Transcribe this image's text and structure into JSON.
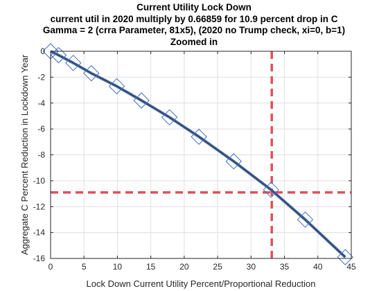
{
  "chart_data": {
    "type": "line",
    "title_lines": [
      "Current Utility Lock Down",
      "current util in 2020 multiply by 0.66859 for 10.9 percent drop in C",
      "Gamma = 2 (crra Parameter, 81x5), (2020 no Trump check, xi=0, b=1)",
      "Zoomed in"
    ],
    "xlabel": "Lock Down Current Utility Percent/Proportional Reduction",
    "ylabel": "Aggregate C Percent Reduction in Lockdown Year",
    "xlim": [
      0,
      45
    ],
    "ylim": [
      -16,
      0
    ],
    "xticks": [
      0,
      5,
      10,
      15,
      20,
      25,
      30,
      35,
      40,
      45
    ],
    "yticks": [
      0,
      -2,
      -4,
      -6,
      -8,
      -10,
      -12,
      -14,
      -16
    ],
    "grid": true,
    "series": [
      {
        "style": "thick-blue-line",
        "color": "#3d6fc4",
        "x": [
          0,
          1.2,
          3.4,
          6.1,
          9.9,
          13.6,
          17.8,
          22.2,
          27.4,
          33.0,
          38.1,
          44.1
        ],
        "y": [
          0,
          -0.3,
          -0.9,
          -1.7,
          -2.7,
          -3.8,
          -5.1,
          -6.6,
          -8.5,
          -10.7,
          -13.0,
          -15.9
        ]
      },
      {
        "style": "thin-gray-line",
        "color": "#444444",
        "x": [
          0,
          1.2,
          3.4,
          6.1,
          9.9,
          13.6,
          17.8,
          22.2,
          27.4,
          33.0,
          38.1,
          44.1
        ],
        "y": [
          0,
          -0.3,
          -0.9,
          -1.7,
          -2.7,
          -3.8,
          -5.1,
          -6.6,
          -8.5,
          -10.7,
          -13.0,
          -15.9
        ]
      },
      {
        "style": "diamond-markers",
        "color": "#3d6fc4",
        "x": [
          0,
          1.2,
          3.4,
          6.1,
          9.9,
          13.6,
          17.8,
          22.2,
          27.4,
          33.0,
          38.1,
          44.1
        ],
        "y": [
          0,
          -0.3,
          -0.9,
          -1.7,
          -2.7,
          -3.8,
          -5.1,
          -6.6,
          -8.5,
          -10.7,
          -13.0,
          -15.9
        ]
      }
    ],
    "reference_lines": [
      {
        "orientation": "vertical",
        "x": 33.1,
        "color": "#e0505a",
        "style": "dashed"
      },
      {
        "orientation": "horizontal",
        "y": -10.9,
        "color": "#e0505a",
        "style": "dashed"
      }
    ]
  }
}
